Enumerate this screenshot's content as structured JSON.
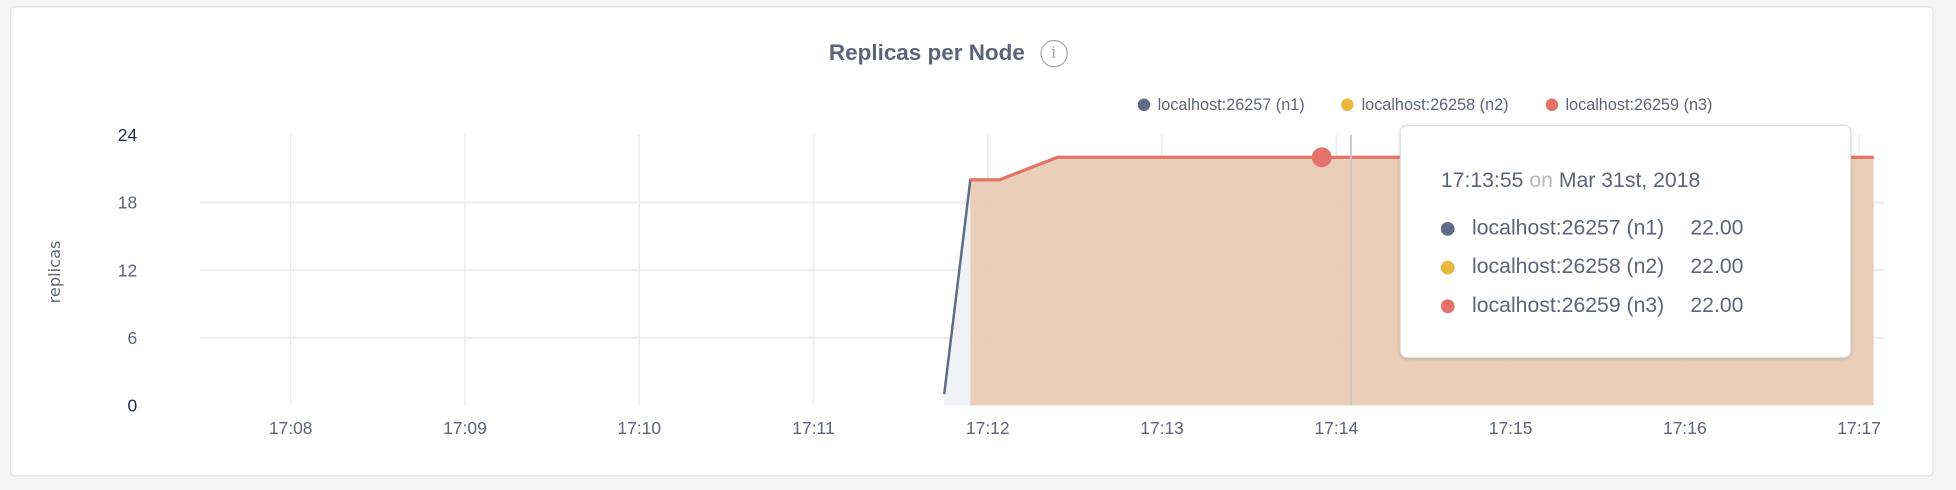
{
  "chart_data": {
    "type": "area",
    "title": "Replicas per Node",
    "ylabel": "replicas",
    "xlabel": "",
    "ylim": [
      0,
      24
    ],
    "yticks": [
      "0",
      "6",
      "12",
      "18",
      "24"
    ],
    "xticks": [
      "17:08",
      "17:09",
      "17:10",
      "17:11",
      "17:12",
      "17:13",
      "17:14",
      "17:15",
      "17:16",
      "17:17"
    ],
    "xlim": [
      "17:07:15",
      "17:17:10"
    ],
    "grid": true,
    "legend_position": "top-right",
    "series": [
      {
        "name": "localhost:26257 (n1)",
        "color": "#5f6b87",
        "points": [
          [
            "17:11:45",
            1
          ],
          [
            "17:11:54",
            20
          ],
          [
            "17:12:04",
            20
          ],
          [
            "17:12:24",
            22
          ],
          [
            "17:17:05",
            22
          ]
        ]
      },
      {
        "name": "localhost:26258 (n2)",
        "color": "#e8b83e",
        "points": [
          [
            "17:11:54",
            20
          ],
          [
            "17:12:04",
            20
          ],
          [
            "17:12:24",
            22
          ],
          [
            "17:17:05",
            22
          ]
        ]
      },
      {
        "name": "localhost:26259 (n3)",
        "color": "#e3726a",
        "points": [
          [
            "17:11:54",
            20
          ],
          [
            "17:12:04",
            20
          ],
          [
            "17:12:24",
            22
          ],
          [
            "17:17:05",
            22
          ]
        ]
      }
    ],
    "highlight": {
      "time": "17:13:55",
      "value": 22
    }
  },
  "tooltip": {
    "time": "17:13:55",
    "on": "on",
    "date": "Mar 31st, 2018",
    "rows": [
      {
        "label": "localhost:26257 (n1)",
        "value": "22.00",
        "color": "#5f6b87"
      },
      {
        "label": "localhost:26258 (n2)",
        "value": "22.00",
        "color": "#e8b83e"
      },
      {
        "label": "localhost:26259 (n3)",
        "value": "22.00",
        "color": "#e3726a"
      }
    ]
  },
  "info_icon": "i"
}
